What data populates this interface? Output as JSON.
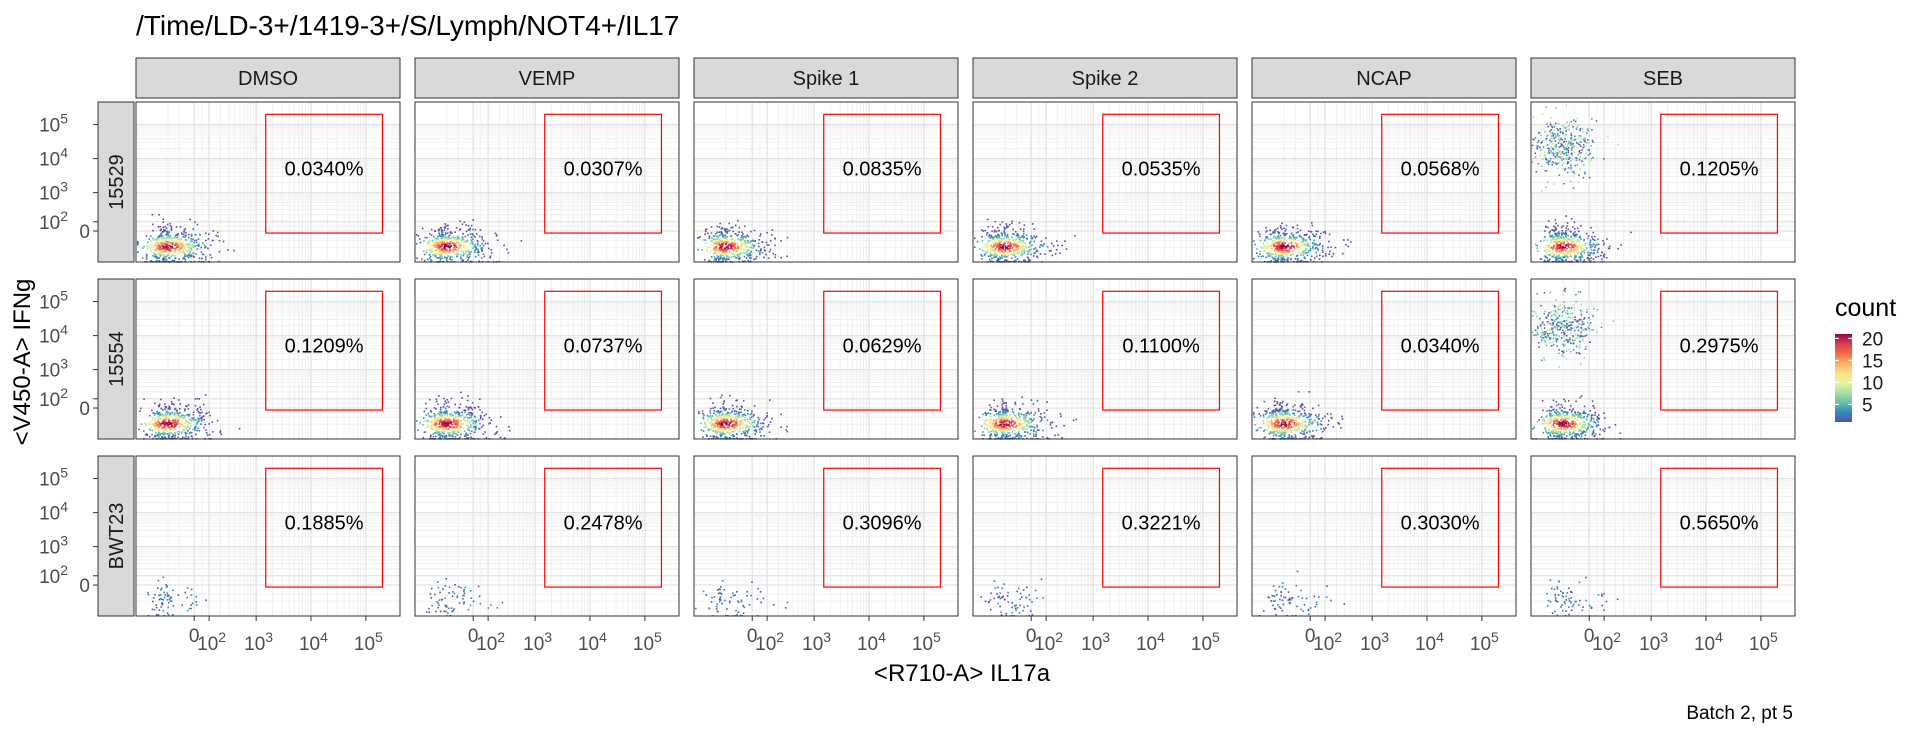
{
  "chart_data": {
    "type": "scatter",
    "subtype": "faceted flow-cytometry density plot with gates",
    "title": "/Time/LD-3+/1419-3+/S/Lymph/NOT4+/IL17",
    "xlabel": "<R710-A> IL17a",
    "ylabel": "<V450-A> IFNg",
    "caption": "Batch 2, pt 5",
    "x_scale": "biexponential",
    "y_scale": "biexponential",
    "x_ticks": [
      "0",
      "10^2",
      "10^3",
      "10^4",
      "10^5"
    ],
    "y_ticks": [
      "0",
      "10^2",
      "10^3",
      "10^4",
      "10^5"
    ],
    "columns": [
      "DMSO",
      "VEMP",
      "Spike 1",
      "Spike 2",
      "NCAP",
      "SEB"
    ],
    "rows": [
      "15529",
      "15554",
      "BWT23"
    ],
    "gate": {
      "x_range": [
        "~1.5e3",
        "~2e5"
      ],
      "y_range": [
        "0",
        "~2e5"
      ],
      "color": "#ff0000"
    },
    "gate_percentages": [
      [
        "0.0340%",
        "0.0307%",
        "0.0835%",
        "0.0535%",
        "0.0568%",
        "0.1205%"
      ],
      [
        "0.1209%",
        "0.0737%",
        "0.0629%",
        "0.1100%",
        "0.0340%",
        "0.2975%"
      ],
      [
        "0.1885%",
        "0.2478%",
        "0.3096%",
        "0.3221%",
        "0.3030%",
        "0.5650%"
      ]
    ],
    "legend": {
      "title": "count",
      "ticks": [
        5,
        10,
        15,
        20
      ],
      "colors": [
        "#5e4fa2",
        "#3288bd",
        "#66c2a5",
        "#abdda4",
        "#e6f598",
        "#fee08b",
        "#fdae61",
        "#f46d43",
        "#d53e4f",
        "#9e0142"
      ]
    },
    "grid": true,
    "strip_fill": "#d9d9d9"
  }
}
